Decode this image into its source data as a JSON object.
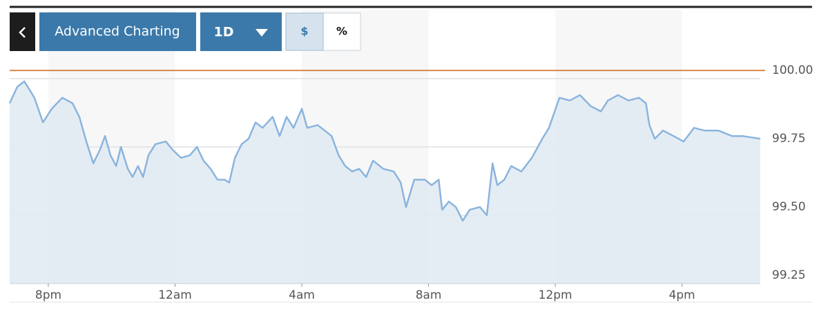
{
  "toolbar": {
    "charting_button": "Advanced Charting",
    "range_button": "1D",
    "unit_buttons": [
      "$",
      "%"
    ]
  },
  "chart_data": {
    "type": "line",
    "x": [
      -1.22,
      -0.98,
      -0.76,
      -0.65,
      -0.44,
      -0.17,
      0.11,
      0.44,
      0.76,
      0.98,
      1.2,
      1.42,
      1.63,
      1.79,
      1.96,
      2.14,
      2.29,
      2.51,
      2.66,
      2.83,
      2.99,
      3.16,
      3.38,
      3.71,
      3.92,
      4.19,
      4.47,
      4.69,
      4.9,
      5.12,
      5.34,
      5.56,
      5.71,
      5.89,
      6.1,
      6.32,
      6.54,
      6.76,
      7.08,
      7.3,
      7.52,
      7.74,
      8.0,
      8.17,
      8.5,
      8.72,
      8.94,
      9.16,
      9.37,
      9.59,
      9.81,
      10.03,
      10.25,
      10.57,
      10.9,
      11.12,
      11.29,
      11.55,
      11.88,
      12.1,
      12.32,
      12.43,
      12.64,
      12.86,
      13.08,
      13.3,
      13.62,
      13.84,
      14.02,
      14.17,
      14.39,
      14.61,
      14.93,
      15.26,
      15.59,
      15.8,
      16.13,
      16.46,
      16.78,
      17.11,
      17.44,
      17.66,
      17.98,
      18.31,
      18.64,
      18.86,
      18.97,
      19.14,
      19.4,
      19.73,
      20.05,
      20.38,
      20.71,
      21.14,
      21.58,
      21.91,
      22.47
    ],
    "series": [
      {
        "color": "#8ab4de",
        "fill": "#e0eaf2",
        "values": [
          99.91,
          99.97,
          99.99,
          99.97,
          99.93,
          99.84,
          99.89,
          99.93,
          99.91,
          99.86,
          99.77,
          99.69,
          99.74,
          99.79,
          99.72,
          99.68,
          99.75,
          99.67,
          99.64,
          99.68,
          99.64,
          99.72,
          99.76,
          99.77,
          99.74,
          99.71,
          99.72,
          99.75,
          99.7,
          99.67,
          99.63,
          99.63,
          99.62,
          99.71,
          99.76,
          99.78,
          99.84,
          99.82,
          99.86,
          99.79,
          99.86,
          99.82,
          99.89,
          99.82,
          99.83,
          99.81,
          99.79,
          99.72,
          99.68,
          99.66,
          99.67,
          99.64,
          99.7,
          99.67,
          99.66,
          99.62,
          99.53,
          99.63,
          99.63,
          99.61,
          99.63,
          99.52,
          99.55,
          99.53,
          99.48,
          99.52,
          99.53,
          99.5,
          99.69,
          99.61,
          99.63,
          99.68,
          99.66,
          99.71,
          99.78,
          99.82,
          99.93,
          99.92,
          99.94,
          99.9,
          99.88,
          99.92,
          99.94,
          99.92,
          99.93,
          99.91,
          99.83,
          99.78,
          99.81,
          99.79,
          99.77,
          99.82,
          99.81,
          99.81,
          99.79,
          99.79,
          99.78
        ]
      }
    ],
    "reference_line": {
      "value": 100.03,
      "color": "#d9874a"
    },
    "xlim": [
      -1.22,
      22.47
    ],
    "xticks": [
      {
        "value": 0,
        "label": "8pm"
      },
      {
        "value": 4,
        "label": "12am"
      },
      {
        "value": 8,
        "label": "4am"
      },
      {
        "value": 12,
        "label": "8am"
      },
      {
        "value": 16,
        "label": "12pm"
      },
      {
        "value": 20,
        "label": "4pm"
      }
    ],
    "ylim": [
      99.25,
      100.25
    ],
    "yticks": [
      99.25,
      {
        "value": 99.5,
        "label": "99.50"
      },
      99.75,
      {
        "value": 100,
        "label": "100.00"
      }
    ],
    "grid": true
  }
}
